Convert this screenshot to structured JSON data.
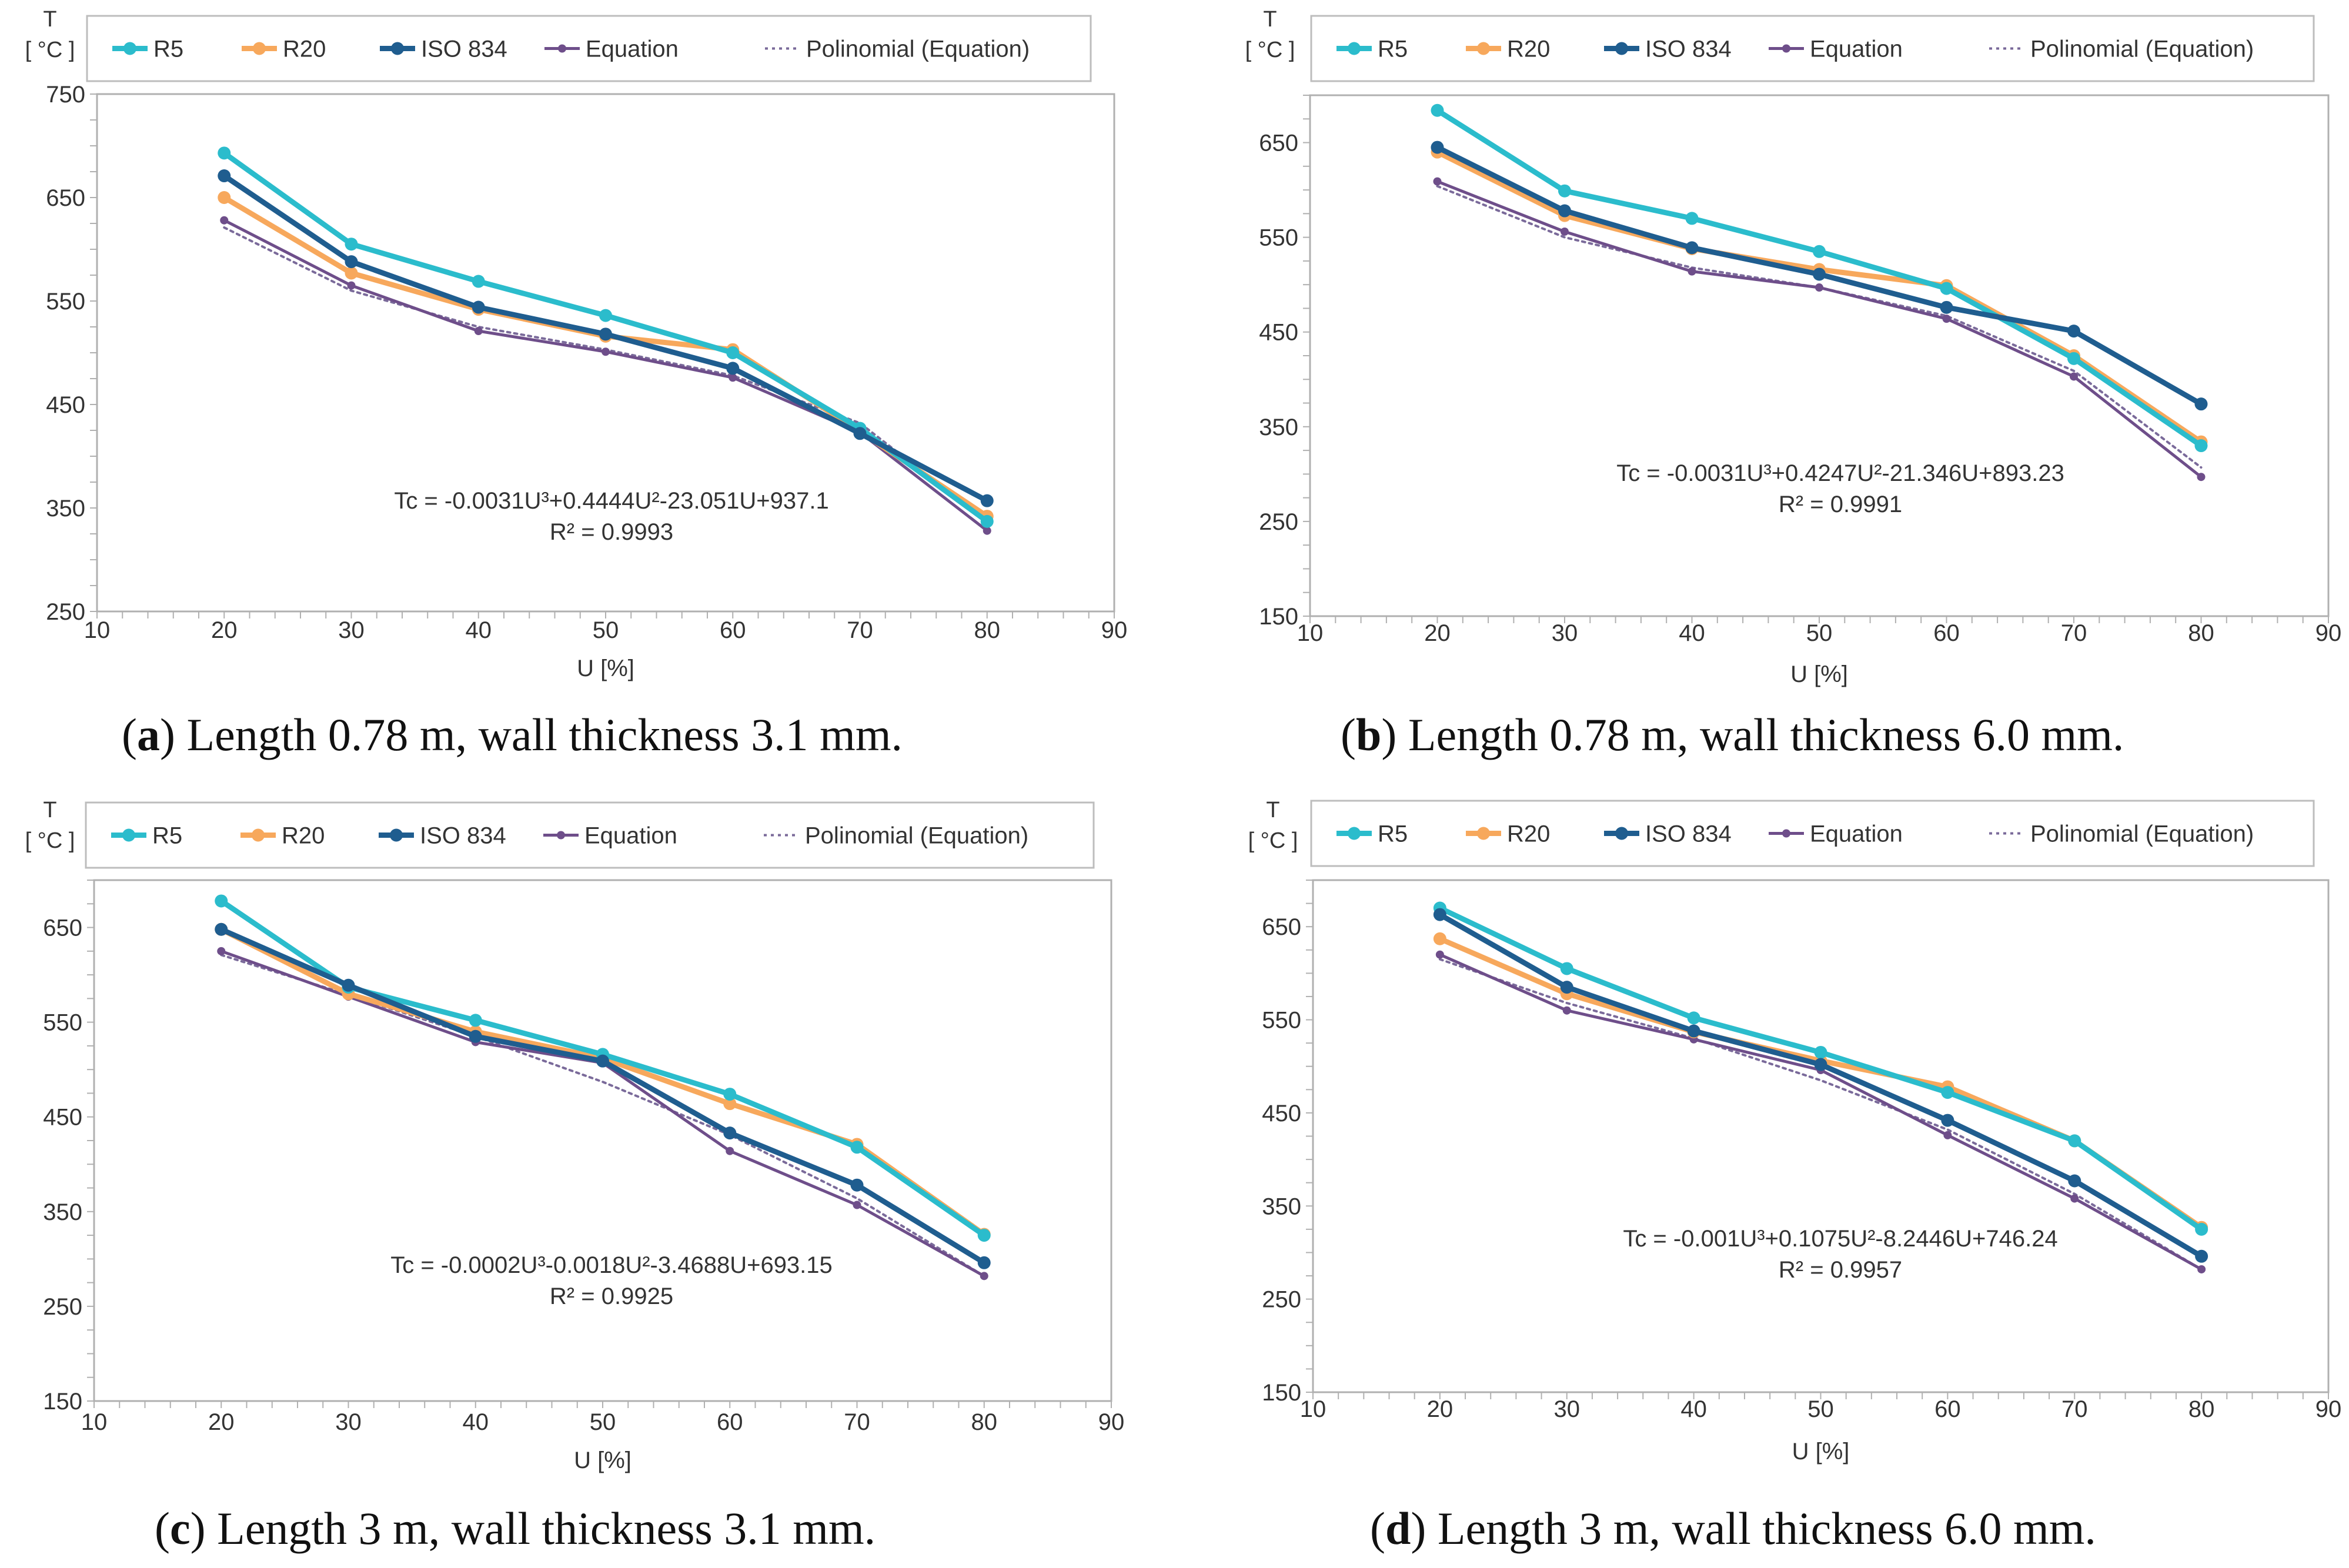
{
  "chart_data": [
    {
      "type": "line",
      "panel_letter": "a",
      "caption": "Length 0.78 m, wall thickness 3.1 mm.",
      "ylabel": "T\n[ °C ]",
      "xlabel": "U [%]",
      "xlim": [
        10,
        90
      ],
      "ylim": [
        250,
        750
      ],
      "x_ticks": [
        10,
        20,
        30,
        40,
        50,
        60,
        70,
        80,
        90
      ],
      "y_ticks": [
        250,
        350,
        450,
        550,
        650,
        750
      ],
      "x": [
        20,
        30,
        40,
        50,
        60,
        70,
        80
      ],
      "series": [
        {
          "name": "R5",
          "values": [
            693,
            605,
            569,
            536,
            500,
            427,
            337
          ]
        },
        {
          "name": "R20",
          "values": [
            650,
            577,
            542,
            516,
            503,
            424,
            342
          ]
        },
        {
          "name": "ISO 834",
          "values": [
            671,
            588,
            544,
            518,
            485,
            422,
            357
          ]
        },
        {
          "name": "Equation",
          "values": [
            628,
            565,
            521,
            501,
            476,
            423,
            328
          ]
        },
        {
          "name": "Polinomial (Equation)",
          "values": [
            621,
            560,
            525,
            503,
            478,
            432,
            337
          ]
        }
      ],
      "equation": "Tc = -0.0031U³+0.4444U²-23.051U+937.1",
      "r2": "R² = 0.9993",
      "grid": false,
      "legend": "top"
    },
    {
      "type": "line",
      "panel_letter": "b",
      "caption": "Length 0.78 m, wall thickness 6.0 mm.",
      "ylabel": "T\n[ °C ]",
      "xlabel": "U [%]",
      "xlim": [
        10,
        90
      ],
      "ylim": [
        150,
        700
      ],
      "x_ticks": [
        10,
        20,
        30,
        40,
        50,
        60,
        70,
        80,
        90
      ],
      "y_ticks": [
        150,
        250,
        350,
        450,
        550,
        650
      ],
      "x": [
        20,
        30,
        40,
        50,
        60,
        70,
        80
      ],
      "series": [
        {
          "name": "R5",
          "values": [
            684,
            599,
            570,
            535,
            496,
            422,
            330
          ]
        },
        {
          "name": "R20",
          "values": [
            640,
            573,
            538,
            516,
            499,
            425,
            334
          ]
        },
        {
          "name": "ISO 834",
          "values": [
            645,
            578,
            539,
            511,
            476,
            451,
            374
          ]
        },
        {
          "name": "Equation",
          "values": [
            609,
            556,
            514,
            497,
            464,
            403,
            297
          ]
        },
        {
          "name": "Polinomial (Equation)",
          "values": [
            604,
            550,
            518,
            497,
            467,
            409,
            307
          ]
        }
      ],
      "equation": "Tc = -0.0031U³+0.4247U²-21.346U+893.23",
      "r2": "R² = 0.9991",
      "grid": false,
      "legend": "top"
    },
    {
      "type": "line",
      "panel_letter": "c",
      "caption": "Length 3 m, wall thickness 3.1 mm.",
      "ylabel": "T\n[ °C ]",
      "xlabel": "U [%]",
      "xlim": [
        10,
        90
      ],
      "ylim": [
        150,
        700
      ],
      "x_ticks": [
        10,
        20,
        30,
        40,
        50,
        60,
        70,
        80,
        90
      ],
      "y_ticks": [
        150,
        250,
        350,
        450,
        550,
        650
      ],
      "x": [
        20,
        30,
        40,
        50,
        60,
        70,
        80
      ],
      "series": [
        {
          "name": "R5",
          "values": [
            678,
            587,
            552,
            516,
            474,
            418,
            325
          ]
        },
        {
          "name": "R20",
          "values": [
            648,
            580,
            540,
            512,
            464,
            421,
            326
          ]
        },
        {
          "name": "ISO 834",
          "values": [
            648,
            589,
            535,
            509,
            433,
            378,
            296
          ]
        },
        {
          "name": "Equation",
          "values": [
            625,
            577,
            529,
            507,
            414,
            357,
            282
          ]
        },
        {
          "name": "Polinomial (Equation)",
          "values": [
            621,
            579,
            535,
            487,
            431,
            364,
            282
          ]
        }
      ],
      "equation": "Tc = -0.0002U³-0.0018U²-3.4688U+693.15",
      "r2": "R² = 0.9925",
      "grid": false,
      "legend": "top"
    },
    {
      "type": "line",
      "panel_letter": "d",
      "caption": "Length 3 m, wall thickness 6.0 mm.",
      "ylabel": "T\n[ °C ]",
      "xlabel": "U [%]",
      "xlim": [
        10,
        90
      ],
      "ylim": [
        150,
        700
      ],
      "x_ticks": [
        10,
        20,
        30,
        40,
        50,
        60,
        70,
        80,
        90
      ],
      "y_ticks": [
        150,
        250,
        350,
        450,
        550,
        650
      ],
      "x": [
        20,
        30,
        40,
        50,
        60,
        70,
        80
      ],
      "series": [
        {
          "name": "R5",
          "values": [
            670,
            605,
            552,
            515,
            472,
            420,
            325
          ]
        },
        {
          "name": "R20",
          "values": [
            637,
            578,
            537,
            506,
            478,
            420,
            327
          ]
        },
        {
          "name": "ISO 834",
          "values": [
            663,
            585,
            538,
            502,
            442,
            377,
            296
          ]
        },
        {
          "name": "Equation",
          "values": [
            620,
            560,
            529,
            496,
            426,
            358,
            282
          ]
        },
        {
          "name": "Polinomial (Equation)",
          "values": [
            615,
            568,
            530,
            485,
            432,
            363,
            282
          ]
        }
      ],
      "equation": "Tc = -0.001U³+0.1075U²-8.2446U+746.24",
      "r2": "R² = 0.9957",
      "grid": false,
      "legend": "top"
    }
  ],
  "colors": {
    "R5": "#2bbccc",
    "R20": "#f7a85c",
    "ISO 834": "#1f5d8f",
    "Equation": "#6e4e8a",
    "Polinomial (Equation)": "#7a6a9a"
  }
}
